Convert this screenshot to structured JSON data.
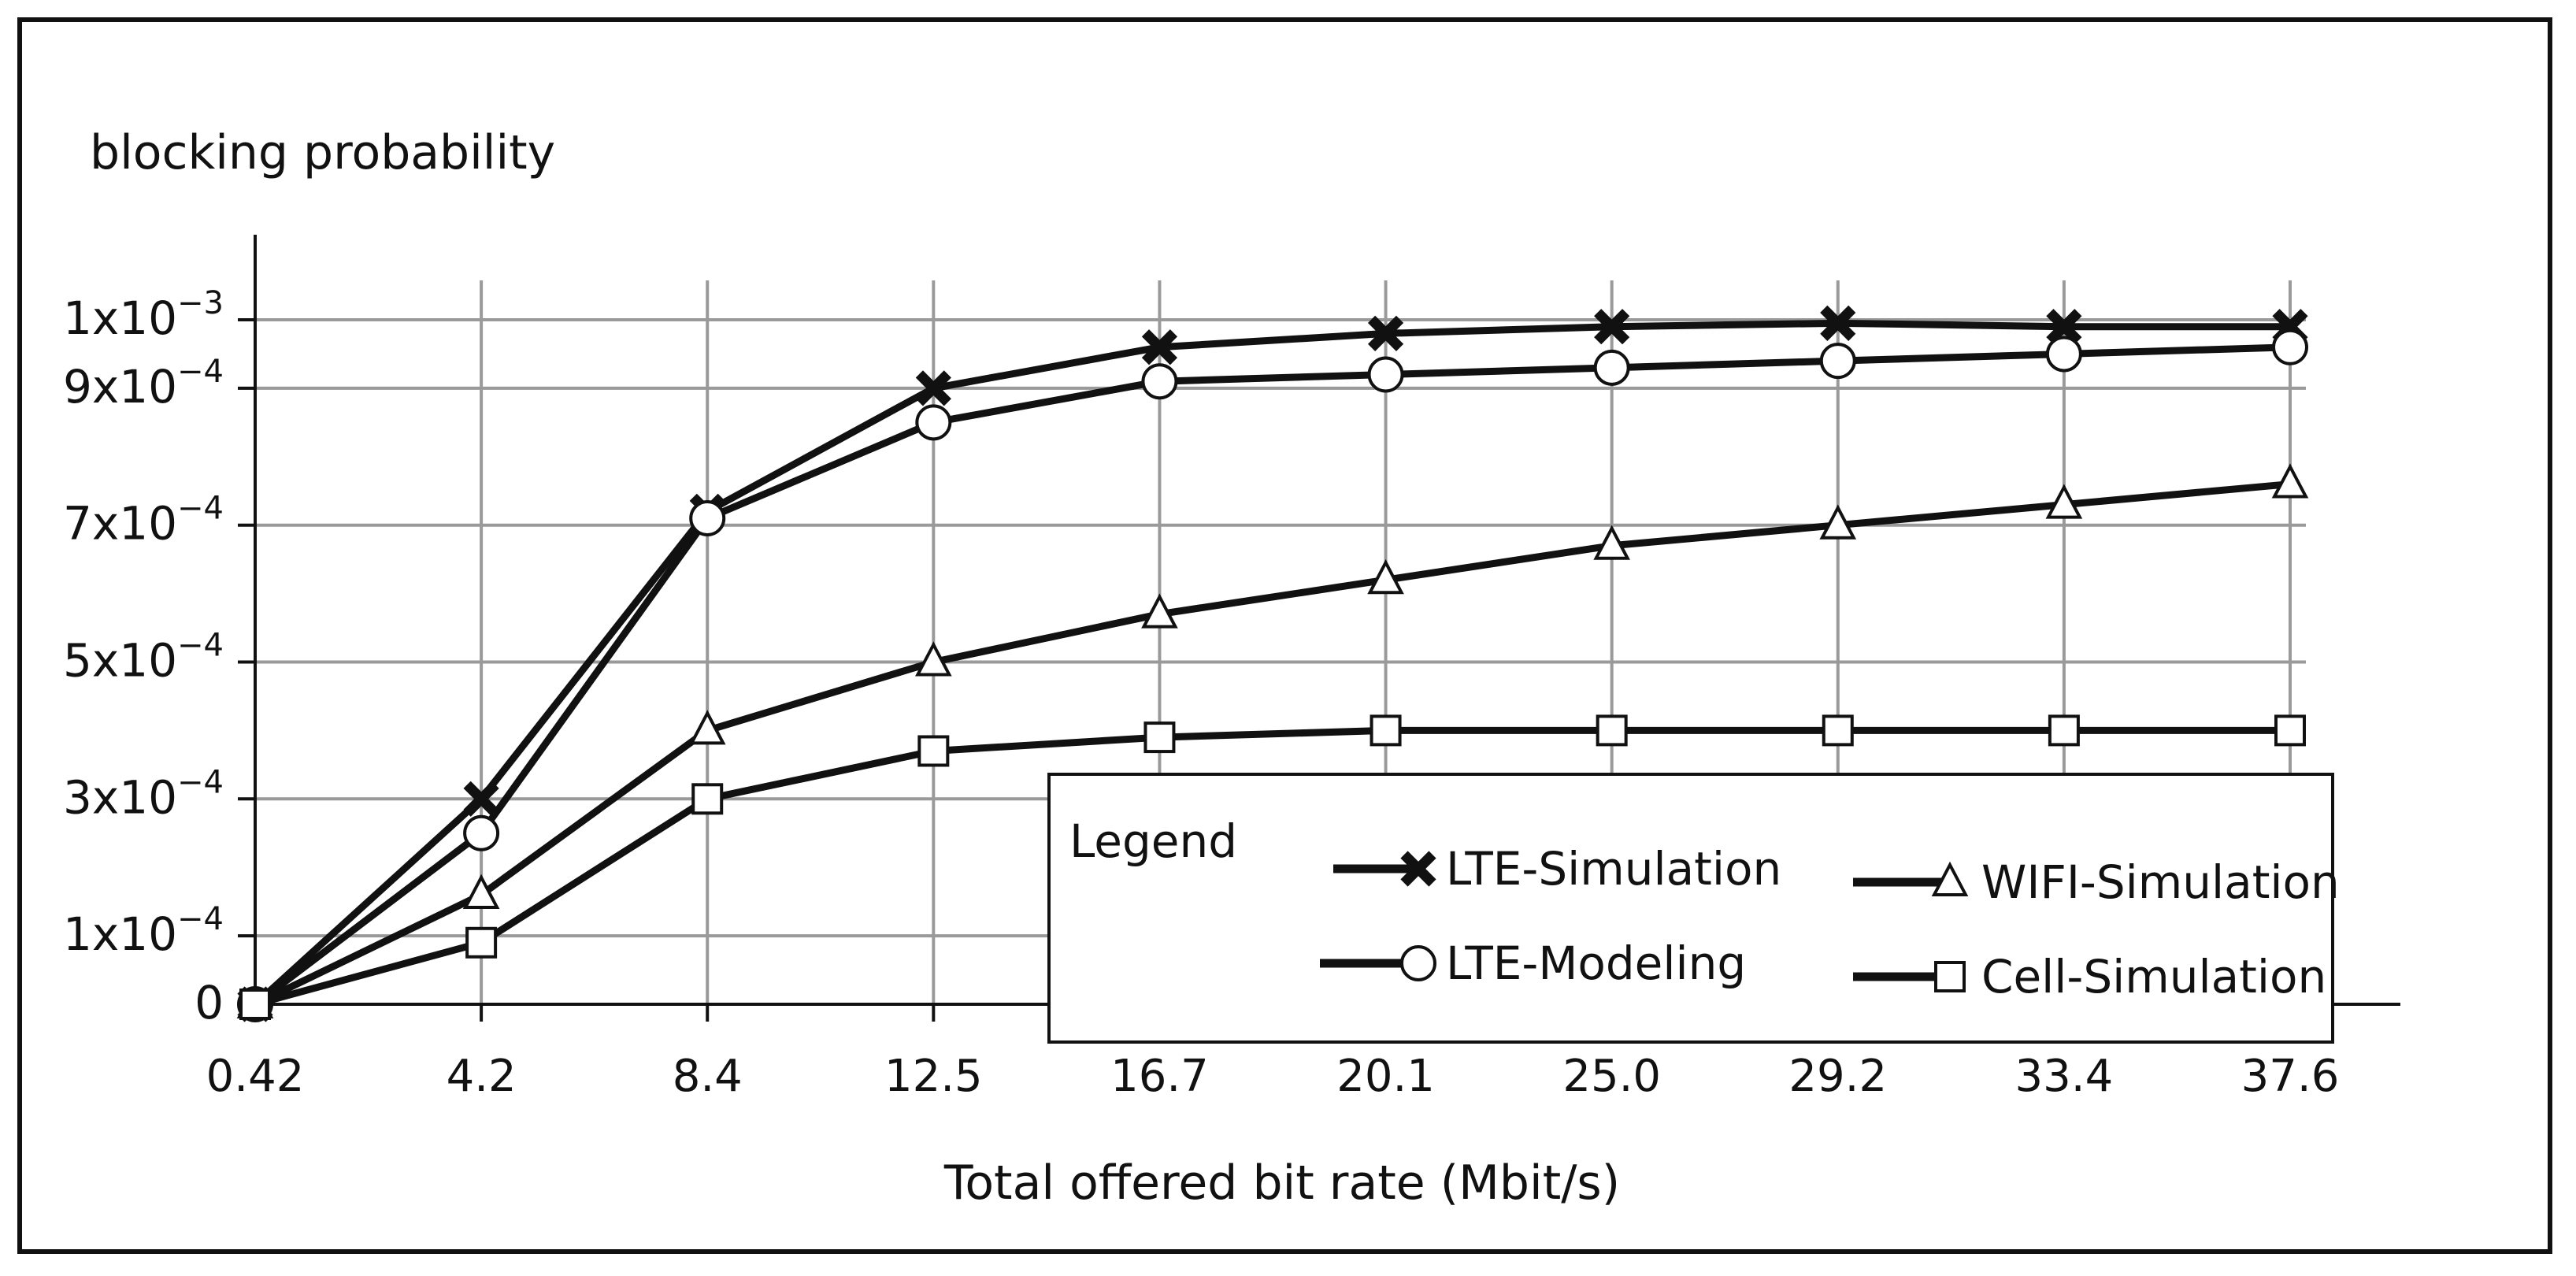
{
  "chart_data": {
    "type": "line",
    "ylabel": "blocking probability",
    "xlabel": "Total offered bit rate (Mbit/s)",
    "x": [
      0.42,
      4.2,
      8.4,
      12.5,
      16.7,
      20.1,
      25.0,
      29.2,
      33.4,
      37.6
    ],
    "x_tick_labels": [
      "0.42",
      "4.2",
      "8.4",
      "12.5",
      "16.7",
      "20.1",
      "25.0",
      "29.2",
      "33.4",
      "37.6"
    ],
    "y_ticks": [
      {
        "value": 0,
        "mant": "0",
        "exp": ""
      },
      {
        "value": 0.0001,
        "mant": "1x10",
        "exp": "−4"
      },
      {
        "value": 0.0003,
        "mant": "3x10",
        "exp": "−4"
      },
      {
        "value": 0.0005,
        "mant": "5x10",
        "exp": "−4"
      },
      {
        "value": 0.0007,
        "mant": "7x10",
        "exp": "−4"
      },
      {
        "value": 0.0009,
        "mant": "9x10",
        "exp": "−4"
      },
      {
        "value": 0.001,
        "mant": "1x10",
        "exp": "−3"
      }
    ],
    "ylim": [
      0,
      0.00105
    ],
    "grid": true,
    "legend": {
      "title": "Legend",
      "position": "bottom-right"
    },
    "series": [
      {
        "name": "LTE-Simulation",
        "marker": "x",
        "values": [
          0,
          0.0003,
          0.00072,
          0.0009,
          0.00096,
          0.00098,
          0.00099,
          0.000995,
          0.00099,
          0.00099
        ]
      },
      {
        "name": "LTE-Modeling",
        "marker": "circle",
        "values": [
          0,
          0.00025,
          0.00071,
          0.00085,
          0.00091,
          0.00092,
          0.00093,
          0.00094,
          0.00095,
          0.00096
        ]
      },
      {
        "name": "WIFI-Simulation",
        "marker": "triangle",
        "values": [
          0,
          0.00016,
          0.0004,
          0.0005,
          0.00057,
          0.00062,
          0.00067,
          0.0007,
          0.00073,
          0.00076
        ]
      },
      {
        "name": "Cell-Simulation",
        "marker": "square",
        "values": [
          0,
          9e-05,
          0.0003,
          0.00037,
          0.00039,
          0.0004,
          0.0004,
          0.0004,
          0.0004,
          0.0004
        ]
      }
    ]
  }
}
